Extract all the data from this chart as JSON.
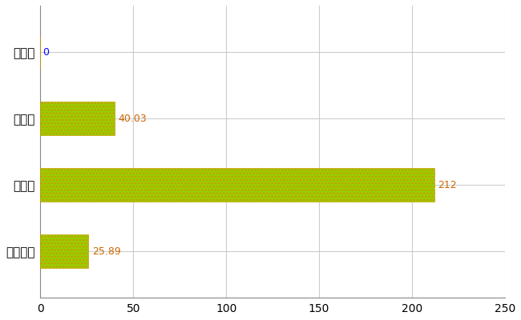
{
  "categories": [
    "熊野町",
    "県平均",
    "県最大",
    "全国平均"
  ],
  "values": [
    0,
    40.03,
    212,
    25.89
  ],
  "bar_facecolor": "#99cc00",
  "bar_edgecolor": "#cc9900",
  "label_color_zero": "#0000ff",
  "label_color_nonzero": "#cc6600",
  "background_color": "#ffffff",
  "grid_color": "#cccccc",
  "xlim": [
    0,
    250
  ],
  "xticks": [
    0,
    50,
    100,
    150,
    200,
    250
  ],
  "value_labels": [
    "0",
    "40.03",
    "212",
    "25.89"
  ],
  "figsize": [
    6.5,
    4.0
  ],
  "dpi": 100,
  "bar_height": 0.5,
  "label_fontsize": 9,
  "tick_fontsize": 10,
  "ytick_fontsize": 11
}
